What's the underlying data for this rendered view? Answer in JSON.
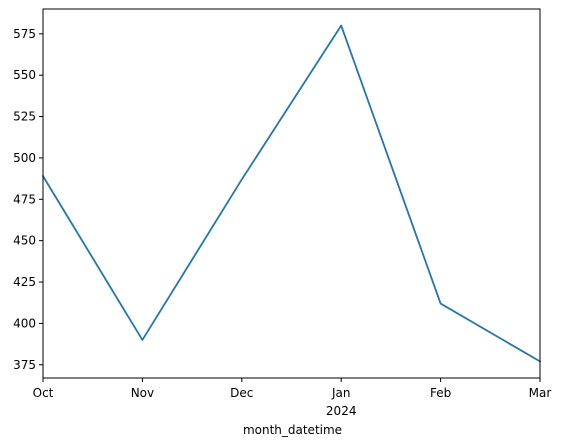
{
  "chart_data": {
    "type": "line",
    "title": "",
    "xlabel": "month_datetime",
    "ylabel": "",
    "x": [
      "2023-10",
      "2023-11",
      "2023-12",
      "2024-01",
      "2024-02",
      "2024-03"
    ],
    "x_tick_labels": [
      "Oct",
      "Nov",
      "Dec",
      "Jan",
      "Feb",
      "Mar"
    ],
    "x_year_label": "2024",
    "series": [
      {
        "values": [
          489,
          390,
          487,
          580,
          412,
          377
        ]
      }
    ],
    "y_ticks": [
      375,
      400,
      425,
      450,
      475,
      500,
      525,
      550,
      575
    ],
    "ylim": [
      367,
      590
    ],
    "grid": false,
    "legend": "none",
    "line_color": "#1f77b4"
  }
}
